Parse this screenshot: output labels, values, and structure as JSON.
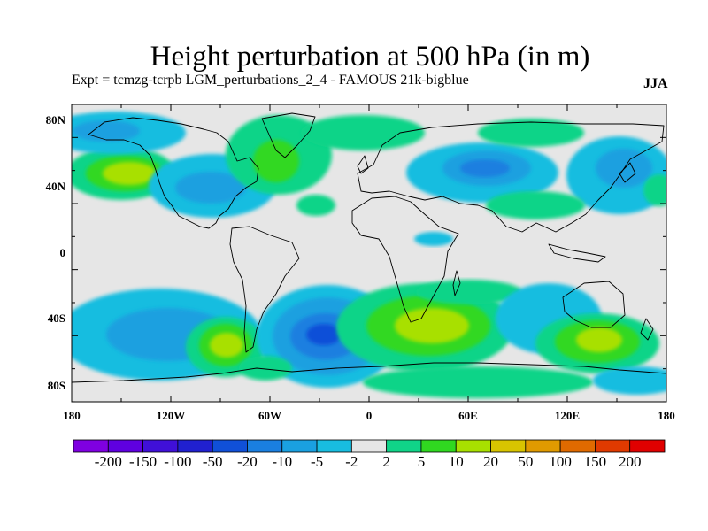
{
  "title": "Height perturbation at 500 hPa (in m)",
  "subtitle": "Expt = tcmzg-tcrpb    LGM_perturbations_2_4 - FAMOUS 21k-bigblue",
  "season": "JJA",
  "map": {
    "lat_ticks": [
      "80N",
      "40N",
      "0",
      "40S",
      "80S"
    ],
    "lon_ticks": [
      "180",
      "120W",
      "60W",
      "0",
      "60E",
      "120E",
      "180"
    ],
    "projection": "cylindrical-equidistant",
    "lon_range": [
      -180,
      180
    ],
    "lat_range": [
      -90,
      90
    ]
  },
  "legend": {
    "labels": [
      "-200",
      "-150",
      "-100",
      "-50",
      "-20",
      "-10",
      "-5",
      "-2",
      "2",
      "5",
      "10",
      "20",
      "50",
      "100",
      "150",
      "200"
    ],
    "colors": [
      "#7f00e1",
      "#5f00e0",
      "#4010d8",
      "#2020d0",
      "#1050d8",
      "#1a7fe0",
      "#1aa0e0",
      "#18bde0",
      "#e6e6e6",
      "#10d488",
      "#30d820",
      "#a8e000",
      "#d8c400",
      "#e09a00",
      "#e06a00",
      "#e03a00",
      "#e00000"
    ],
    "map_colors": {
      "neutral": "#e6e6e6",
      "pos5": "#10d488",
      "pos10": "#30d820",
      "pos20": "#a8e000",
      "pos50": "#d8c400",
      "pos100": "#e09a00",
      "neg2": "#18bde0",
      "neg5": "#1aa0e0",
      "neg10": "#1a7fe0",
      "neg20": "#1050d8"
    }
  }
}
